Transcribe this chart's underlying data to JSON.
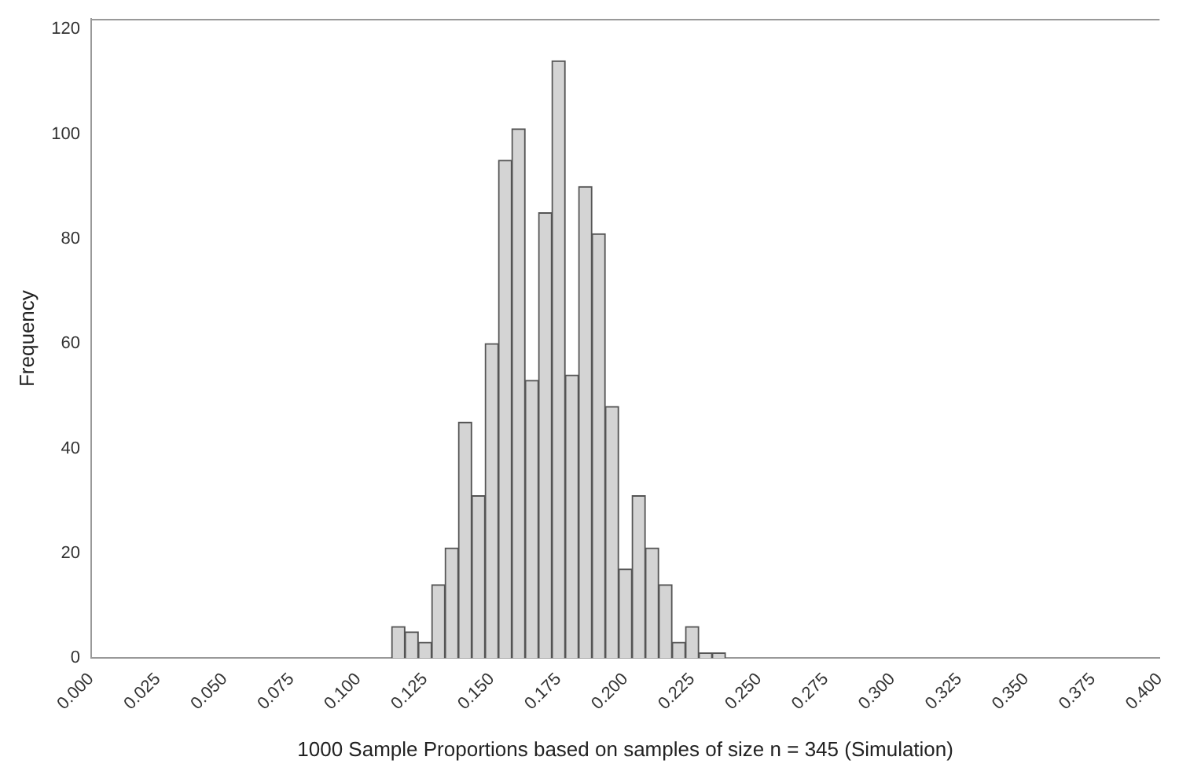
{
  "chart_data": {
    "type": "histogram",
    "xlabel": "1000 Sample Proportions based on samples of size n = 345 (Simulation)",
    "ylabel": "Frequency",
    "bins": [
      0.1125,
      0.1175,
      0.1225,
      0.1275,
      0.1325,
      0.1375,
      0.1425,
      0.1475,
      0.1525,
      0.1575,
      0.1625,
      0.1675,
      0.1725,
      0.1775,
      0.1825,
      0.1875,
      0.1925,
      0.1975,
      0.2025,
      0.2075,
      0.2125,
      0.2175,
      0.2225,
      0.2275,
      0.2325,
      0.2375
    ],
    "values": [
      6,
      5,
      3,
      14,
      21,
      45,
      31,
      60,
      95,
      101,
      53,
      85,
      114,
      54,
      90,
      81,
      48,
      17,
      31,
      21,
      14,
      3,
      6,
      1,
      1
    ],
    "color": "#d4d4d4",
    "xlim": [
      0,
      0.4
    ],
    "xticks": [
      {
        "value": 0,
        "label": "0.000"
      },
      {
        "value": 0.025,
        "label": "0.025"
      },
      {
        "value": 0.05,
        "label": "0.050"
      },
      {
        "value": 0.075,
        "label": "0.075"
      },
      {
        "value": 0.1,
        "label": "0.100"
      },
      {
        "value": 0.125,
        "label": "0.125"
      },
      {
        "value": 0.15,
        "label": "0.150"
      },
      {
        "value": 0.175,
        "label": "0.175"
      },
      {
        "value": 0.2,
        "label": "0.200"
      },
      {
        "value": 0.225,
        "label": "0.225"
      },
      {
        "value": 0.25,
        "label": "0.250"
      },
      {
        "value": 0.275,
        "label": "0.275"
      },
      {
        "value": 0.3,
        "label": "0.300"
      },
      {
        "value": 0.325,
        "label": "0.325"
      },
      {
        "value": 0.35,
        "label": "0.350"
      },
      {
        "value": 0.375,
        "label": "0.375"
      },
      {
        "value": 0.4,
        "label": "0.400"
      }
    ],
    "ylim": [
      0,
      122
    ],
    "yticks": [
      0,
      20,
      40,
      60,
      80,
      100,
      120
    ],
    "grid": false,
    "legend": false
  }
}
